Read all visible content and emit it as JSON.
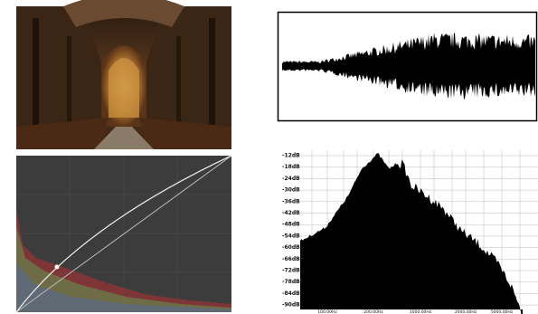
{
  "spectrum": {
    "y_labels": [
      "-12dB",
      "-18dB",
      "-24dB",
      "-30dB",
      "-36dB",
      "-42dB",
      "-48dB",
      "-54dB",
      "-60dB",
      "-66dB",
      "-72dB",
      "-78dB",
      "-84dB",
      "-90dB"
    ],
    "x_labels": [
      "100.00Hz",
      "200.00Hz",
      "1000.00Hz",
      "2000.00Hz",
      "5000.00Hz"
    ]
  }
}
